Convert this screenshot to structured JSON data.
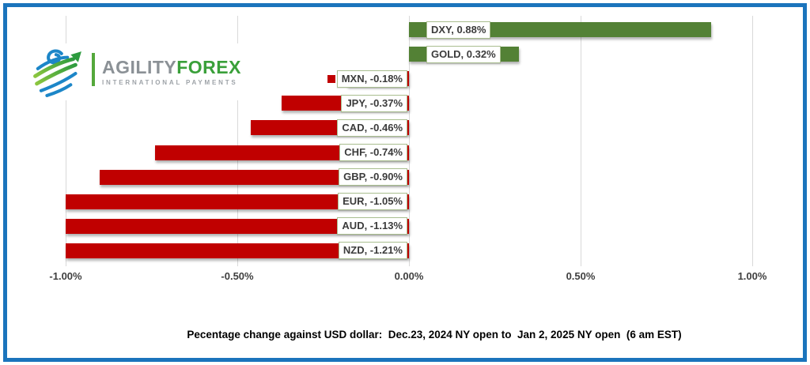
{
  "brand": {
    "name_gray": "AGILITY",
    "name_green": "FOREX",
    "tagline": "INTERNATIONAL PAYMENTS"
  },
  "caption": "Pecentage change against USD dollar:  Dec.23, 2024 NY open to  Jan 2, 2025 NY open  (6 am EST)",
  "colors": {
    "frame_border": "#1B74BC",
    "positive_bar": "#538135",
    "negative_bar": "#C00000",
    "gridline": "#D9D9D9",
    "label_box_border": "#A9BE8F",
    "label_box_background": "#FFFFFF",
    "label_text": "#3B3B3B",
    "axis_text": "#3F3F3F",
    "logo_blue": "#1C86C8",
    "logo_green": "#3AA03A"
  },
  "chart_data": {
    "type": "bar",
    "orientation": "horizontal",
    "title": "",
    "categories": [
      "DXY",
      "GOLD",
      "MXN",
      "JPY",
      "CAD",
      "CHF",
      "GBP",
      "EUR",
      "AUD",
      "NZD"
    ],
    "values": [
      0.88,
      0.32,
      -0.18,
      -0.37,
      -0.46,
      -0.74,
      -0.9,
      -1.05,
      -1.13,
      -1.21
    ],
    "data_labels": [
      "DXY, 0.88%",
      "GOLD, 0.32%",
      "MXN, -0.18%",
      "JPY, -0.37%",
      "CAD, -0.46%",
      "CHF, -0.74%",
      "GBP, -0.90%",
      "EUR, -1.05%",
      "AUD, -1.13%",
      "NZD, -1.21%"
    ],
    "x_ticks": [
      {
        "value": -1.0,
        "label": "-1.00%"
      },
      {
        "value": -0.5,
        "label": "-0.50%"
      },
      {
        "value": 0.0,
        "label": "0.00%"
      },
      {
        "value": 0.5,
        "label": "0.50%"
      },
      {
        "value": 1.0,
        "label": "1.00%"
      }
    ],
    "xlim": [
      -1.0,
      1.0
    ],
    "bars_clipped_at_xlim": [
      "EUR",
      "AUD",
      "NZD"
    ],
    "grid": true,
    "legend_position": "none",
    "positive_color": "#538135",
    "negative_color": "#C00000",
    "xlabel": "",
    "ylabel": ""
  }
}
